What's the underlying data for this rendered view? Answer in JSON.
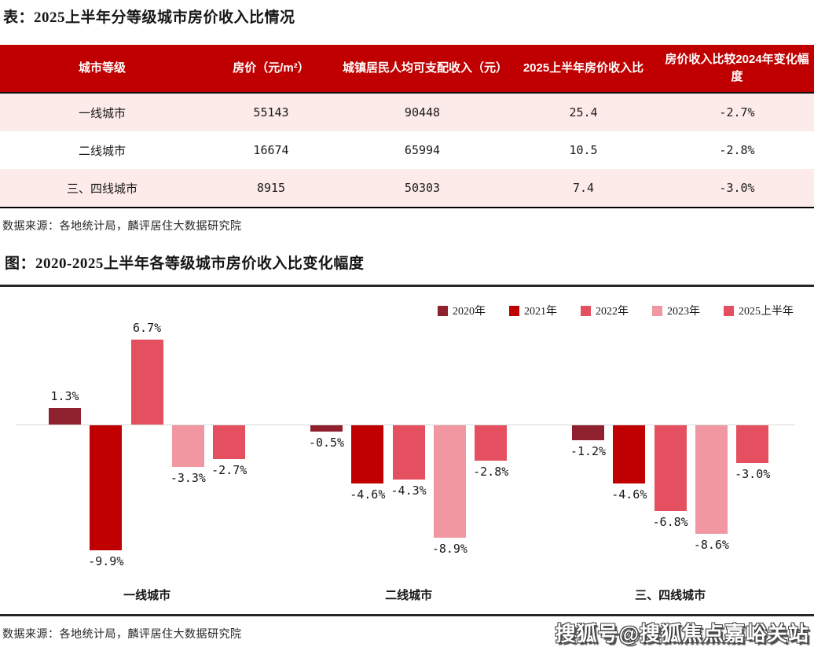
{
  "page": {
    "watermark": "搜狐号@搜狐焦点嘉峪关站"
  },
  "colors": {
    "header_red": "#c00000",
    "row_pink": "#fcebe9",
    "divider": "#262626",
    "axis_line": "#d9d9d9"
  },
  "table": {
    "title": "表：2025上半年分等级城市房价收入比情况",
    "headers": [
      "城市等级",
      "房价（元/m²）",
      "城镇居民人均可支配收入（元）",
      "2025上半年房价收入比",
      "房价收入比较2024年变化幅度"
    ],
    "rows": [
      {
        "cells": [
          "一线城市",
          "55143",
          "90448",
          "25.4",
          "-2.7%"
        ]
      },
      {
        "cells": [
          "二线城市",
          "16674",
          "65994",
          "10.5",
          "-2.8%"
        ]
      },
      {
        "cells": [
          "三、四线城市",
          "8915",
          "50303",
          "7.4",
          "-3.0%"
        ]
      }
    ],
    "source": "数据来源：各地统计局，麟评居住大数据研究院"
  },
  "chart": {
    "title": "图：2020-2025上半年各等级城市房价收入比变化幅度",
    "source": "数据来源：各地统计局，麟评居住大数据研究院"
  },
  "chart_data": {
    "type": "bar",
    "title": "图：2020-2025上半年各等级城市房价收入比变化幅度",
    "categories": [
      "一线城市",
      "二线城市",
      "三、四线城市"
    ],
    "series": [
      {
        "name": "2020年",
        "color": "#8e212d",
        "values": [
          1.3,
          -0.5,
          -1.2
        ]
      },
      {
        "name": "2021年",
        "color": "#c00000",
        "values": [
          -9.9,
          -4.6,
          -4.6
        ]
      },
      {
        "name": "2022年",
        "color": "#e4505f",
        "values": [
          6.7,
          -4.3,
          -6.8
        ]
      },
      {
        "name": "2023年",
        "color": "#f097a1",
        "values": [
          -3.3,
          -8.9,
          -8.6
        ]
      },
      {
        "name": "2025上半年",
        "color": "#e4505f",
        "values": [
          -2.7,
          -2.8,
          -3.0
        ]
      }
    ],
    "unit": "%",
    "ylabel": "",
    "xlabel": "",
    "ylim": [
      -11,
      7.5
    ],
    "baseline": 0,
    "grid": false,
    "value_labels": true,
    "legend_position": "top-right"
  }
}
